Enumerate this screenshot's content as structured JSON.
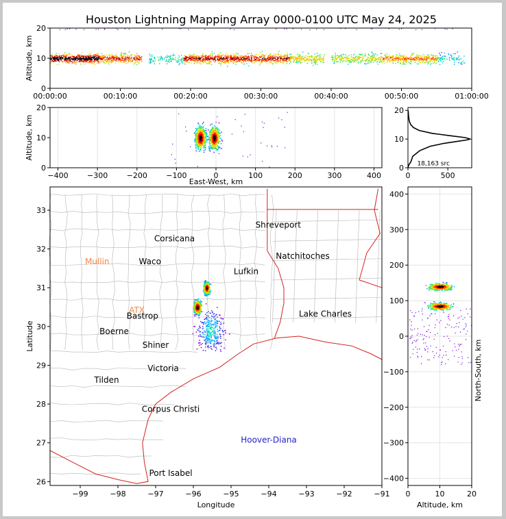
{
  "title": "Houston Lightning Mapping Array 0000-0100 UTC May 24, 2025",
  "colors": {
    "border": "#000000",
    "coast": "#d42020",
    "county": "#b4b4b4",
    "grid": "#e4e4e4"
  },
  "chart_data": [
    {
      "id": "time_height",
      "type": "scatter",
      "xlabel": "",
      "ylabel": "Altitude, km",
      "xlim": [
        "00:00:00",
        "01:00:00"
      ],
      "ylim": [
        0,
        20
      ],
      "xticks": [
        "00:00:00",
        "00:10:00",
        "00:20:00",
        "00:30:00",
        "00:40:00",
        "00:50:00",
        "01:00:00"
      ],
      "yticks": [
        "0",
        "10",
        "20"
      ],
      "activity_minutes": [
        [
          0,
          7,
          1.0
        ],
        [
          7,
          13,
          0.8
        ],
        [
          14,
          19,
          0.35
        ],
        [
          19,
          34,
          0.85
        ],
        [
          34,
          39,
          0.6
        ],
        [
          40,
          47,
          0.55
        ],
        [
          47,
          55,
          0.7
        ],
        [
          55,
          59,
          0.3
        ]
      ],
      "mean_altitude_km": 10
    },
    {
      "id": "east_west_altitude",
      "type": "scatter",
      "xlabel": "East-West, km",
      "ylabel": "Altitude, km",
      "xlim": [
        -420,
        420
      ],
      "ylim": [
        0,
        20
      ],
      "xticks": [
        "−400",
        "−300",
        "−200",
        "−100",
        "0",
        "100",
        "200",
        "300",
        "400"
      ],
      "yticks": [
        "0",
        "10",
        "20"
      ],
      "core_x_km": [
        -40,
        -5
      ],
      "core_altitude_km": 10
    },
    {
      "id": "altitude_histogram",
      "type": "line",
      "xlabel": "",
      "ylabel": "",
      "xlim": [
        0,
        800
      ],
      "ylim": [
        0,
        21
      ],
      "xticks": [
        "0",
        "500"
      ],
      "yticks": [
        "0",
        "10",
        "20"
      ],
      "annotation": "18,163 src",
      "x": [
        0,
        10,
        35,
        60,
        150,
        280,
        450,
        620,
        740,
        780,
        720,
        520,
        300,
        140,
        70,
        35,
        20,
        12,
        8,
        5,
        3
      ],
      "y": [
        0,
        1,
        2,
        4,
        6,
        7.5,
        8.5,
        9.2,
        9.7,
        10,
        10.5,
        11.2,
        12,
        13,
        14,
        15,
        16,
        17,
        18,
        19,
        20
      ]
    },
    {
      "id": "plan_view",
      "type": "scatter",
      "xlabel": "Longitude",
      "ylabel": "Latitude",
      "xlim": [
        -99.8,
        -91
      ],
      "ylim": [
        25.9,
        33.6
      ],
      "xticks": [
        "−99",
        "−98",
        "−97",
        "−96",
        "−95",
        "−94",
        "−93",
        "−92",
        "−91"
      ],
      "yticks": [
        "26",
        "27",
        "28",
        "29",
        "30",
        "31",
        "32",
        "33"
      ],
      "places": [
        {
          "name": "Shreveport",
          "lon": -93.75,
          "lat": 32.55,
          "color": "#000000"
        },
        {
          "name": "Corsicana",
          "lon": -96.5,
          "lat": 32.2,
          "color": "#000000"
        },
        {
          "name": "Natchitoches",
          "lon": -93.1,
          "lat": 31.75,
          "color": "#000000"
        },
        {
          "name": "Mullin",
          "lon": -98.55,
          "lat": 31.6,
          "color": "#f08a4b"
        },
        {
          "name": "Waco",
          "lon": -97.15,
          "lat": 31.6,
          "color": "#000000"
        },
        {
          "name": "Lufkin",
          "lon": -94.6,
          "lat": 31.35,
          "color": "#000000"
        },
        {
          "name": "ATX",
          "lon": -97.5,
          "lat": 30.35,
          "color": "#f08a4b"
        },
        {
          "name": "Bastrop",
          "lon": -97.35,
          "lat": 30.2,
          "color": "#000000"
        },
        {
          "name": "Lake Charles",
          "lon": -92.5,
          "lat": 30.25,
          "color": "#000000"
        },
        {
          "name": "Boerne",
          "lon": -98.1,
          "lat": 29.8,
          "color": "#000000"
        },
        {
          "name": "Shiner",
          "lon": -97.0,
          "lat": 29.45,
          "color": "#000000"
        },
        {
          "name": "Victoria",
          "lon": -96.8,
          "lat": 28.85,
          "color": "#000000"
        },
        {
          "name": "Tilden",
          "lon": -98.3,
          "lat": 28.55,
          "color": "#000000"
        },
        {
          "name": "Corpus Christi",
          "lon": -96.6,
          "lat": 27.8,
          "color": "#000000"
        },
        {
          "name": "Hoover-Diana",
          "lon": -94.0,
          "lat": 27.0,
          "color": "#2020d0"
        },
        {
          "name": "Port Isabel",
          "lon": -96.6,
          "lat": 26.15,
          "color": "#000000"
        }
      ],
      "cells": [
        {
          "lon": -95.65,
          "lat": 31.0,
          "spread": 0.12,
          "intensity": 1.0
        },
        {
          "lon": -95.9,
          "lat": 30.5,
          "spread": 0.14,
          "intensity": 1.0
        },
        {
          "lon": -95.55,
          "lat": 29.9,
          "spread": 0.35,
          "intensity": 0.35
        }
      ]
    },
    {
      "id": "altitude_north_south",
      "type": "scatter",
      "xlabel": "Altitude, km",
      "ylabel": "North-South, km",
      "xlim": [
        0,
        20
      ],
      "ylim": [
        -420,
        420
      ],
      "xticks": [
        "0",
        "10",
        "20"
      ],
      "yticks": [
        "−400",
        "−300",
        "−200",
        "−100",
        "0",
        "100",
        "200",
        "300",
        "400"
      ],
      "core_y_km": [
        140,
        85
      ],
      "core_altitude_km": 10
    }
  ]
}
